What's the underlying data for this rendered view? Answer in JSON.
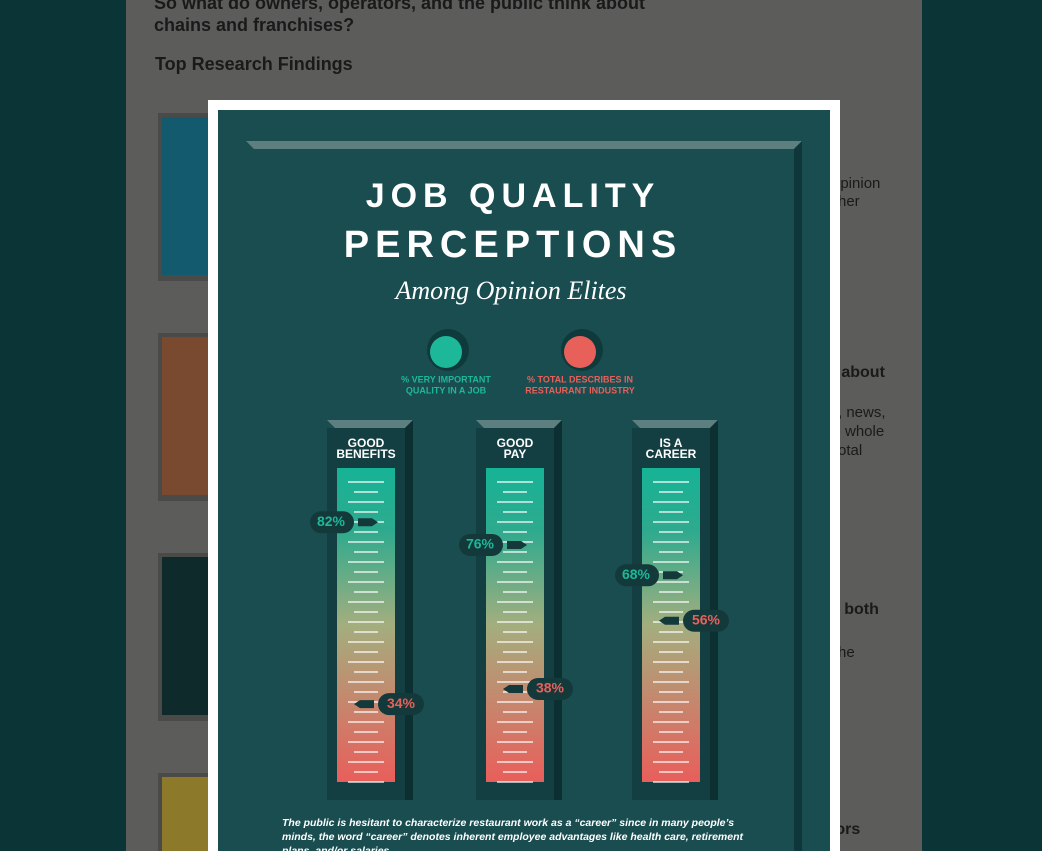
{
  "page": {
    "heading": "So what do owners, operators, and the public think about chains and franchises?",
    "subheading": "Top Research Findings",
    "side_fragments": [
      "opinion",
      "her",
      "s about",
      ", news,",
      "whole",
      "otal",
      "g both",
      "he",
      "tors"
    ]
  },
  "infographic": {
    "title_line1": "JOB QUALITY",
    "title_line2": "PERCEPTIONS",
    "subtitle": "Among Opinion Elites",
    "legend": [
      {
        "lines": [
          "% VERY IMPORTANT",
          "QUALITY IN A JOB"
        ],
        "color": "#1cb899"
      },
      {
        "lines": [
          "% TOTAL DESCRIBES IN",
          "RESTAURANT INDUSTRY"
        ],
        "color": "#e8605a"
      }
    ],
    "bars": [
      {
        "lines": [
          "GOOD",
          "BENEFITS"
        ],
        "values": [
          82,
          34
        ],
        "value_labels": [
          "82%",
          "34%"
        ]
      },
      {
        "lines": [
          "GOOD",
          "PAY"
        ],
        "values": [
          76,
          38
        ],
        "value_labels": [
          "76%",
          "38%"
        ]
      },
      {
        "lines": [
          "IS A",
          "CAREER"
        ],
        "values": [
          68,
          56
        ],
        "value_labels": [
          "68%",
          "56%"
        ]
      }
    ],
    "footnote": [
      "The public is hesitant to characterize restaurant work as a “career” since in many people’s",
      "minds, the word “career” denotes inherent employee advantages like health care, retirement",
      "plans, and/or salaries."
    ]
  }
}
